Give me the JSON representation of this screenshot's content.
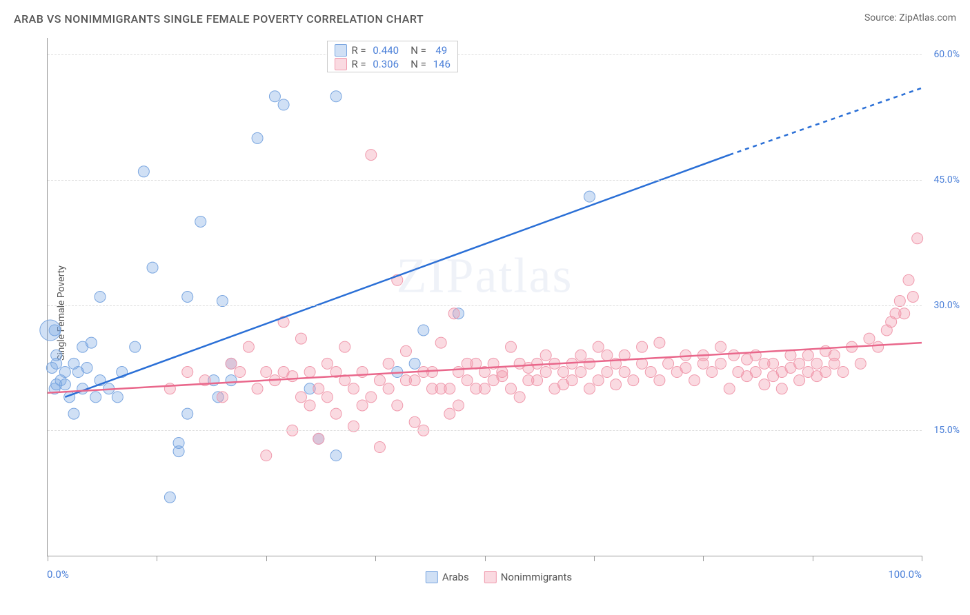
{
  "title": "ARAB VS NONIMMIGRANTS SINGLE FEMALE POVERTY CORRELATION CHART",
  "source_label": "Source: ",
  "source_name": "ZipAtlas.com",
  "watermark": "ZIPatlas",
  "ylabel": "Single Female Poverty",
  "chart": {
    "type": "scatter",
    "xlim": [
      0,
      100
    ],
    "ylim": [
      0,
      62
    ],
    "ytick_values": [
      15,
      30,
      45,
      60
    ],
    "ytick_labels": [
      "15.0%",
      "30.0%",
      "45.0%",
      "60.0%"
    ],
    "xtick_values": [
      0,
      12.5,
      25,
      37.5,
      50,
      62.5,
      75,
      87.5,
      100
    ],
    "xaxis_label_left": "0.0%",
    "xaxis_label_right": "100.0%",
    "grid_color": "#dddddd",
    "axis_color": "#999999",
    "label_color": "#4a7fd8",
    "background_color": "#ffffff"
  },
  "series": [
    {
      "name": "Arabs",
      "color_fill": "rgba(120,165,225,0.35)",
      "color_stroke": "#7aa6e0",
      "line_color": "#2a6fd6",
      "line_width": 2.5,
      "marker_radius": 8,
      "r_value": "0.440",
      "n_value": "49",
      "trend": {
        "x1": 2,
        "y1": 19,
        "x2": 78,
        "y2": 48,
        "x2_dash": 100,
        "y2_dash": 56
      },
      "points": [
        [
          0.5,
          22.5
        ],
        [
          0.8,
          20
        ],
        [
          1,
          20.5
        ],
        [
          1,
          24
        ],
        [
          1,
          23
        ],
        [
          0.8,
          27
        ],
        [
          1.5,
          21
        ],
        [
          2,
          20.5
        ],
        [
          2,
          22
        ],
        [
          2.5,
          19
        ],
        [
          3,
          23
        ],
        [
          3,
          17
        ],
        [
          3.5,
          22
        ],
        [
          4,
          25
        ],
        [
          4,
          20
        ],
        [
          4.5,
          22.5
        ],
        [
          5,
          25.5
        ],
        [
          5.5,
          19
        ],
        [
          6,
          21
        ],
        [
          6,
          31
        ],
        [
          7,
          20
        ],
        [
          8,
          19
        ],
        [
          8.5,
          22
        ],
        [
          10,
          25
        ],
        [
          11,
          46
        ],
        [
          12,
          34.5
        ],
        [
          14,
          7
        ],
        [
          15,
          12.5
        ],
        [
          15,
          13.5
        ],
        [
          16,
          31
        ],
        [
          16,
          17
        ],
        [
          17.5,
          40
        ],
        [
          19,
          21
        ],
        [
          19.5,
          19
        ],
        [
          20,
          30.5
        ],
        [
          21,
          21
        ],
        [
          21,
          23
        ],
        [
          24,
          50
        ],
        [
          26,
          55
        ],
        [
          27,
          54
        ],
        [
          30,
          20
        ],
        [
          31,
          14
        ],
        [
          33,
          55
        ],
        [
          33,
          12
        ],
        [
          40,
          22
        ],
        [
          42,
          23
        ],
        [
          43,
          27
        ],
        [
          47,
          29
        ],
        [
          62,
          43
        ]
      ]
    },
    {
      "name": "Nonimmigrants",
      "color_fill": "rgba(240,150,170,0.35)",
      "color_stroke": "#f09aad",
      "line_color": "#e9678b",
      "line_width": 2.5,
      "marker_radius": 8,
      "r_value": "0.306",
      "n_value": "146",
      "trend": {
        "x1": 0,
        "y1": 19.5,
        "x2": 100,
        "y2": 25.5
      },
      "points": [
        [
          14,
          20
        ],
        [
          16,
          22
        ],
        [
          18,
          21
        ],
        [
          20,
          19
        ],
        [
          21,
          23
        ],
        [
          22,
          22
        ],
        [
          23,
          25
        ],
        [
          24,
          20
        ],
        [
          25,
          22
        ],
        [
          25,
          12
        ],
        [
          26,
          21
        ],
        [
          27,
          28
        ],
        [
          27,
          22
        ],
        [
          28,
          21.5
        ],
        [
          28,
          15
        ],
        [
          29,
          19
        ],
        [
          29,
          26
        ],
        [
          30,
          22
        ],
        [
          30,
          18
        ],
        [
          31,
          14
        ],
        [
          31,
          20
        ],
        [
          32,
          19
        ],
        [
          32,
          23
        ],
        [
          33,
          22
        ],
        [
          33,
          17
        ],
        [
          34,
          21
        ],
        [
          34,
          25
        ],
        [
          35,
          20
        ],
        [
          35,
          15.5
        ],
        [
          36,
          22
        ],
        [
          36,
          18
        ],
        [
          37,
          19
        ],
        [
          37,
          48
        ],
        [
          38,
          21
        ],
        [
          38,
          13
        ],
        [
          39,
          23
        ],
        [
          39,
          20
        ],
        [
          40,
          18
        ],
        [
          40,
          33
        ],
        [
          41,
          21
        ],
        [
          41,
          24.5
        ],
        [
          42,
          16
        ],
        [
          42,
          21
        ],
        [
          43,
          22
        ],
        [
          43,
          15
        ],
        [
          44,
          20
        ],
        [
          44,
          22
        ],
        [
          45,
          25.5
        ],
        [
          45,
          20
        ],
        [
          46,
          20
        ],
        [
          46,
          17
        ],
        [
          46.5,
          29
        ],
        [
          47,
          22
        ],
        [
          47,
          18
        ],
        [
          48,
          23
        ],
        [
          48,
          21
        ],
        [
          49,
          23
        ],
        [
          49,
          20
        ],
        [
          50,
          22
        ],
        [
          50,
          20
        ],
        [
          51,
          21
        ],
        [
          51,
          23
        ],
        [
          52,
          22
        ],
        [
          52,
          21.5
        ],
        [
          53,
          20
        ],
        [
          53,
          25
        ],
        [
          54,
          23
        ],
        [
          54,
          19
        ],
        [
          55,
          22.5
        ],
        [
          55,
          21
        ],
        [
          56,
          23
        ],
        [
          56,
          21
        ],
        [
          57,
          24
        ],
        [
          57,
          22
        ],
        [
          58,
          20
        ],
        [
          58,
          23
        ],
        [
          59,
          22
        ],
        [
          59,
          20.5
        ],
        [
          60,
          23
        ],
        [
          60,
          21
        ],
        [
          61,
          22
        ],
        [
          61,
          24
        ],
        [
          62,
          20
        ],
        [
          62,
          23
        ],
        [
          63,
          25
        ],
        [
          63,
          21
        ],
        [
          64,
          24
        ],
        [
          64,
          22
        ],
        [
          65,
          23
        ],
        [
          65,
          20.5
        ],
        [
          66,
          22
        ],
        [
          66,
          24
        ],
        [
          67,
          21
        ],
        [
          68,
          23
        ],
        [
          68,
          25
        ],
        [
          69,
          22
        ],
        [
          70,
          25.5
        ],
        [
          70,
          21
        ],
        [
          71,
          23
        ],
        [
          72,
          22
        ],
        [
          73,
          24
        ],
        [
          73,
          22.5
        ],
        [
          74,
          21
        ],
        [
          75,
          24
        ],
        [
          75,
          23
        ],
        [
          76,
          22
        ],
        [
          77,
          23
        ],
        [
          77,
          25
        ],
        [
          78,
          20
        ],
        [
          78.5,
          24
        ],
        [
          79,
          22
        ],
        [
          80,
          21.5
        ],
        [
          80,
          23.5
        ],
        [
          81,
          24
        ],
        [
          81,
          22
        ],
        [
          82,
          20.5
        ],
        [
          82,
          23
        ],
        [
          83,
          21.5
        ],
        [
          83,
          23
        ],
        [
          84,
          20
        ],
        [
          84,
          22
        ],
        [
          85,
          24
        ],
        [
          85,
          22.5
        ],
        [
          86,
          21
        ],
        [
          86,
          23
        ],
        [
          87,
          24
        ],
        [
          87,
          22
        ],
        [
          88,
          23
        ],
        [
          88,
          21.5
        ],
        [
          89,
          22
        ],
        [
          89,
          24.5
        ],
        [
          90,
          23
        ],
        [
          90,
          24
        ],
        [
          91,
          22
        ],
        [
          92,
          25
        ],
        [
          93,
          23
        ],
        [
          94,
          26
        ],
        [
          95,
          25
        ],
        [
          96,
          27
        ],
        [
          96.5,
          28
        ],
        [
          97,
          29
        ],
        [
          97.5,
          30.5
        ],
        [
          98,
          29
        ],
        [
          98.5,
          33
        ],
        [
          99,
          31
        ],
        [
          99.5,
          38
        ]
      ]
    }
  ],
  "bottom_legend": [
    {
      "label": "Arabs",
      "fill": "rgba(120,165,225,0.45)",
      "stroke": "#7aa6e0"
    },
    {
      "label": "Nonimmigrants",
      "fill": "rgba(240,150,170,0.45)",
      "stroke": "#f09aad"
    }
  ]
}
